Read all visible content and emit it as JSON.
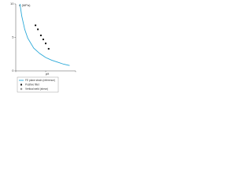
{
  "chart_data": {
    "type": "line",
    "x_label": "ρ/t",
    "y_label": "σ (MPa)",
    "xlim": [
      0,
      10
    ],
    "ylim": [
      0,
      10
    ],
    "xticks": [
      0,
      5,
      10
    ],
    "yticks": [
      0,
      5,
      10
    ],
    "series": [
      {
        "name": "FE plane strain (reference)",
        "color": "#29a8d8",
        "kind": "line",
        "x": [
          0.7,
          1.0,
          1.5,
          2.0,
          3.0,
          4.0,
          5.0,
          6.0,
          7.0,
          8.0,
          9.0
        ],
        "values": [
          10,
          8.2,
          6.2,
          4.9,
          3.4,
          2.6,
          2.0,
          1.6,
          1.3,
          1.0,
          0.8
        ]
      },
      {
        "name": "Positive fillet",
        "color": "#111111",
        "kind": "scatter",
        "x": [
          3.3,
          3.7,
          4.2,
          4.6,
          5.0,
          5.5
        ],
        "values": [
          6.8,
          6.2,
          5.3,
          4.7,
          4.1,
          3.3
        ]
      },
      {
        "name": "Vertical weld (shear)",
        "color": "#111111",
        "kind": "none",
        "x": [],
        "values": []
      }
    ]
  }
}
